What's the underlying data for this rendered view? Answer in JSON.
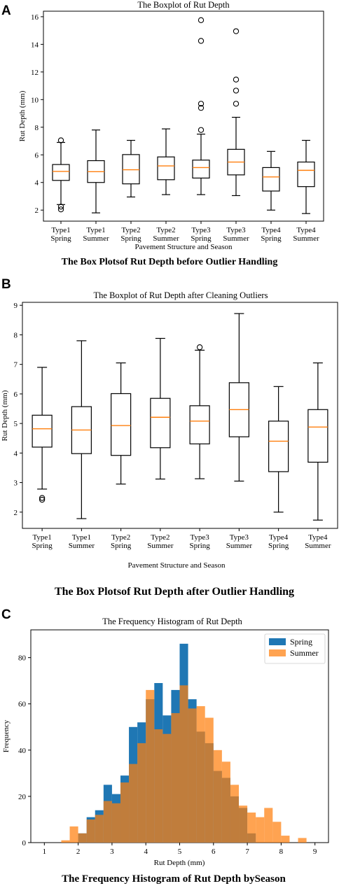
{
  "figure": {
    "panel_a": {
      "label": "A",
      "caption": "The Box Plotsof Rut Depth before Outlier Handling"
    },
    "panel_b": {
      "label": "B",
      "caption": "The Box Plotsof Rut Depth after Outlier Handling"
    },
    "panel_c": {
      "label": "C",
      "caption": "The Frequency Histogram of Rut Depth bySeason"
    }
  },
  "colors": {
    "median": "#ff7f0e",
    "spring": "#1f77b4",
    "summer": "#ff7f0e",
    "overlap": "#c07a3f"
  },
  "chart_data": [
    {
      "type": "boxplot",
      "title": "The Boxplot of Rut Depth",
      "xlabel": "Pavement Structure and Season",
      "ylabel": "Rut Depth (mm)",
      "ylim": [
        1.2,
        16.4
      ],
      "yticks": [
        2,
        4,
        6,
        8,
        10,
        12,
        14,
        16
      ],
      "categories": [
        [
          "Type1",
          "Spring"
        ],
        [
          "Type1",
          "Summer"
        ],
        [
          "Type2",
          "Spring"
        ],
        [
          "Type2",
          "Summer"
        ],
        [
          "Type3",
          "Spring"
        ],
        [
          "Type3",
          "Summer"
        ],
        [
          "Type4",
          "Spring"
        ],
        [
          "Type4",
          "Summer"
        ]
      ],
      "boxes": [
        {
          "whislo": 2.4,
          "q1": 4.15,
          "med": 4.8,
          "q3": 5.3,
          "whishi": 6.9,
          "fliers": [
            7.05,
            2.25,
            2.05
          ]
        },
        {
          "whislo": 1.8,
          "q1": 4.0,
          "med": 4.78,
          "q3": 5.58,
          "whishi": 7.8,
          "fliers": []
        },
        {
          "whislo": 2.95,
          "q1": 3.9,
          "med": 4.92,
          "q3": 6.02,
          "whishi": 7.05,
          "fliers": []
        },
        {
          "whislo": 3.12,
          "q1": 4.2,
          "med": 5.2,
          "q3": 5.85,
          "whishi": 7.88,
          "fliers": []
        },
        {
          "whislo": 3.12,
          "q1": 4.32,
          "med": 5.08,
          "q3": 5.62,
          "whishi": 7.5,
          "fliers": [
            15.75,
            14.25,
            9.7,
            9.4,
            7.8
          ]
        },
        {
          "whislo": 3.05,
          "q1": 4.55,
          "med": 5.48,
          "q3": 6.4,
          "whishi": 8.72,
          "fliers": [
            14.95,
            11.45,
            10.65,
            9.7
          ]
        },
        {
          "whislo": 2.0,
          "q1": 3.38,
          "med": 4.4,
          "q3": 5.08,
          "whishi": 6.25,
          "fliers": []
        },
        {
          "whislo": 1.75,
          "q1": 3.7,
          "med": 4.88,
          "q3": 5.48,
          "whishi": 7.05,
          "fliers": []
        }
      ]
    },
    {
      "type": "boxplot",
      "title": "The Boxplot of Rut Depth after Cleaning Outliers",
      "xlabel": "Pavement Structure and Season",
      "ylabel": "Rut Depth (mm)",
      "ylim": [
        1.45,
        9.1
      ],
      "yticks": [
        2,
        3,
        4,
        5,
        6,
        7,
        8,
        9
      ],
      "categories": [
        [
          "Type1",
          "Spring"
        ],
        [
          "Type1",
          "Summer"
        ],
        [
          "Type2",
          "Spring"
        ],
        [
          "Type2",
          "Summer"
        ],
        [
          "Type3",
          "Spring"
        ],
        [
          "Type3",
          "Summer"
        ],
        [
          "Type4",
          "Spring"
        ],
        [
          "Type4",
          "Summer"
        ]
      ],
      "boxes": [
        {
          "whislo": 2.78,
          "q1": 4.2,
          "med": 4.82,
          "q3": 5.28,
          "whishi": 6.9,
          "fliers": [
            2.48,
            2.42
          ]
        },
        {
          "whislo": 1.78,
          "q1": 3.98,
          "med": 4.78,
          "q3": 5.57,
          "whishi": 7.8,
          "fliers": []
        },
        {
          "whislo": 2.95,
          "q1": 3.92,
          "med": 4.93,
          "q3": 6.01,
          "whishi": 7.05,
          "fliers": []
        },
        {
          "whislo": 3.12,
          "q1": 4.18,
          "med": 5.21,
          "q3": 5.85,
          "whishi": 7.88,
          "fliers": []
        },
        {
          "whislo": 3.13,
          "q1": 4.31,
          "med": 5.08,
          "q3": 5.6,
          "whishi": 7.48,
          "fliers": [
            7.58
          ]
        },
        {
          "whislo": 3.05,
          "q1": 4.55,
          "med": 5.47,
          "q3": 6.38,
          "whishi": 8.72,
          "fliers": []
        },
        {
          "whislo": 2.0,
          "q1": 3.37,
          "med": 4.4,
          "q3": 5.08,
          "whishi": 6.25,
          "fliers": []
        },
        {
          "whislo": 1.73,
          "q1": 3.69,
          "med": 4.88,
          "q3": 5.47,
          "whishi": 7.05,
          "fliers": []
        }
      ]
    },
    {
      "type": "histogram",
      "title": "The Frequency Histogram of Rut Depth",
      "xlabel": "Rut Depth (mm)",
      "ylabel": "Frequency",
      "xlim": [
        0.6,
        9.4
      ],
      "ylim": [
        0,
        92
      ],
      "xticks": [
        1,
        2,
        3,
        4,
        5,
        6,
        7,
        8,
        9
      ],
      "yticks": [
        0,
        20,
        40,
        60,
        80
      ],
      "legend": {
        "position": "top-right"
      },
      "series": [
        {
          "name": "Spring",
          "bins": [
            {
              "x0": 2.0,
              "x1": 2.25,
              "y": 4
            },
            {
              "x0": 2.25,
              "x1": 2.5,
              "y": 11
            },
            {
              "x0": 2.5,
              "x1": 2.75,
              "y": 14
            },
            {
              "x0": 2.75,
              "x1": 3.0,
              "y": 25
            },
            {
              "x0": 3.0,
              "x1": 3.25,
              "y": 21
            },
            {
              "x0": 3.25,
              "x1": 3.5,
              "y": 29
            },
            {
              "x0": 3.5,
              "x1": 3.75,
              "y": 50
            },
            {
              "x0": 3.75,
              "x1": 4.0,
              "y": 52
            },
            {
              "x0": 4.0,
              "x1": 4.25,
              "y": 62
            },
            {
              "x0": 4.25,
              "x1": 4.5,
              "y": 69
            },
            {
              "x0": 4.5,
              "x1": 4.75,
              "y": 55
            },
            {
              "x0": 4.75,
              "x1": 5.0,
              "y": 66
            },
            {
              "x0": 5.0,
              "x1": 5.25,
              "y": 86
            },
            {
              "x0": 5.25,
              "x1": 5.5,
              "y": 62
            },
            {
              "x0": 5.5,
              "x1": 5.75,
              "y": 48
            },
            {
              "x0": 5.75,
              "x1": 6.0,
              "y": 43
            },
            {
              "x0": 6.0,
              "x1": 6.25,
              "y": 31
            },
            {
              "x0": 6.25,
              "x1": 6.5,
              "y": 28
            },
            {
              "x0": 6.5,
              "x1": 6.75,
              "y": 20
            },
            {
              "x0": 6.75,
              "x1": 7.0,
              "y": 15
            },
            {
              "x0": 7.0,
              "x1": 7.25,
              "y": 4
            }
          ]
        },
        {
          "name": "Summer",
          "bins": [
            {
              "x0": 1.5,
              "x1": 1.75,
              "y": 1
            },
            {
              "x0": 1.75,
              "x1": 2.0,
              "y": 7
            },
            {
              "x0": 2.0,
              "x1": 2.25,
              "y": 4
            },
            {
              "x0": 2.25,
              "x1": 2.5,
              "y": 10
            },
            {
              "x0": 2.5,
              "x1": 2.75,
              "y": 12
            },
            {
              "x0": 2.75,
              "x1": 3.0,
              "y": 18
            },
            {
              "x0": 3.0,
              "x1": 3.25,
              "y": 17
            },
            {
              "x0": 3.25,
              "x1": 3.5,
              "y": 26
            },
            {
              "x0": 3.5,
              "x1": 3.75,
              "y": 34
            },
            {
              "x0": 3.75,
              "x1": 4.0,
              "y": 43
            },
            {
              "x0": 4.0,
              "x1": 4.25,
              "y": 66
            },
            {
              "x0": 4.25,
              "x1": 4.5,
              "y": 49
            },
            {
              "x0": 4.5,
              "x1": 4.75,
              "y": 47
            },
            {
              "x0": 4.75,
              "x1": 5.0,
              "y": 56
            },
            {
              "x0": 5.0,
              "x1": 5.25,
              "y": 68
            },
            {
              "x0": 5.25,
              "x1": 5.5,
              "y": 58
            },
            {
              "x0": 5.5,
              "x1": 5.75,
              "y": 59
            },
            {
              "x0": 5.75,
              "x1": 6.0,
              "y": 54
            },
            {
              "x0": 6.0,
              "x1": 6.25,
              "y": 40
            },
            {
              "x0": 6.25,
              "x1": 6.5,
              "y": 35
            },
            {
              "x0": 6.5,
              "x1": 6.75,
              "y": 25
            },
            {
              "x0": 6.75,
              "x1": 7.0,
              "y": 16
            },
            {
              "x0": 7.0,
              "x1": 7.25,
              "y": 13
            },
            {
              "x0": 7.25,
              "x1": 7.5,
              "y": 11
            },
            {
              "x0": 7.5,
              "x1": 7.75,
              "y": 15
            },
            {
              "x0": 7.75,
              "x1": 8.0,
              "y": 9
            },
            {
              "x0": 8.0,
              "x1": 8.25,
              "y": 3
            },
            {
              "x0": 8.5,
              "x1": 8.75,
              "y": 2
            }
          ]
        }
      ]
    }
  ]
}
